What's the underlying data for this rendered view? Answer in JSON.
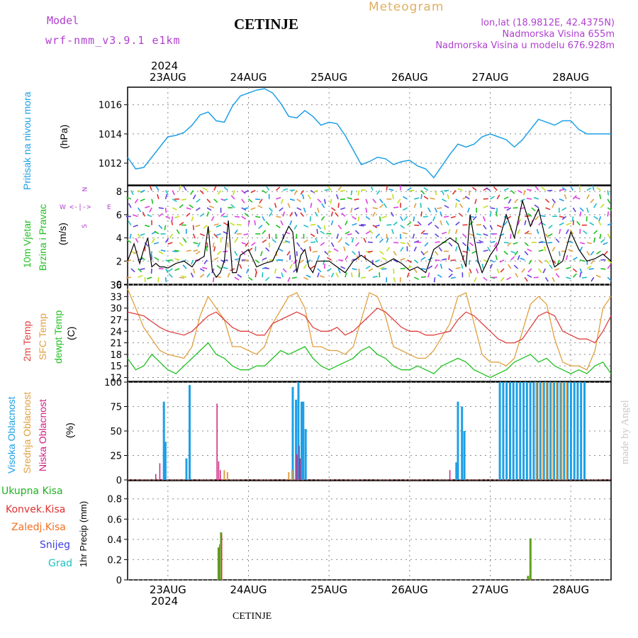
{
  "header": {
    "model_label": "Model",
    "model_name": "wrf-nmm_v3.9.1  e1km",
    "station": "CETINJE",
    "meteogram": "Meteogram",
    "lonlat": "lon,lat (18.9812E, 42.4375N)",
    "elev": "Nadmorska Visina 655m",
    "elev_model": "Nadmorska Visina u modelu 676.928m",
    "year_top": "2024",
    "year_bottom": "2024",
    "footer_station": "CETINJE",
    "watermark": "made by Angel"
  },
  "colors": {
    "pressure": "#1ea0e6",
    "temp": "#e04040",
    "sfc": "#e0a040",
    "dew": "#20c020",
    "high_cloud": "#1ea0e6",
    "mid_cloud": "#e0a040",
    "low_cloud": "#d02080",
    "total_precip": "#60a020",
    "convective": "#e03030",
    "frozen": "#f07020",
    "snow": "#4040e0",
    "graupel": "#20c0c0"
  },
  "chart_data": [
    {
      "type": "line",
      "panel": "pressure",
      "xlabel_days": [
        "23AUG",
        "24AUG",
        "25AUG",
        "26AUG",
        "27AUG",
        "28AUG"
      ],
      "ylabel_left": "Pritisak na nivou mora",
      "unit": "(hPa)",
      "yticks": [
        1012,
        1014,
        1016
      ],
      "ylim": [
        1010.5,
        1017.2
      ],
      "xlim": [
        -0.5,
        5.5
      ],
      "series": [
        {
          "x": [
            -0.5,
            -0.4,
            -0.3,
            -0.2,
            -0.1,
            0.0,
            0.1,
            0.2,
            0.3,
            0.4,
            0.5,
            0.6,
            0.7,
            0.8,
            0.9,
            1.0,
            1.1,
            1.2,
            1.3,
            1.4,
            1.5,
            1.6,
            1.7,
            1.8,
            1.9,
            2.0,
            2.1,
            2.2,
            2.3,
            2.4,
            2.5,
            2.6,
            2.7,
            2.8,
            2.9,
            3.0,
            3.1,
            3.2,
            3.3,
            3.4,
            3.5,
            3.6,
            3.7,
            3.8,
            3.9,
            4.0,
            4.1,
            4.2,
            4.3,
            4.4,
            4.5,
            4.6,
            4.7,
            4.8,
            4.9,
            5.0,
            5.1,
            5.2,
            5.3,
            5.4,
            5.5
          ],
          "y": [
            1012.4,
            1011.6,
            1011.7,
            1012.4,
            1013.1,
            1013.8,
            1013.9,
            1014.1,
            1014.6,
            1015.3,
            1015.5,
            1014.9,
            1014.8,
            1015.9,
            1016.6,
            1016.8,
            1017.0,
            1017.1,
            1016.8,
            1016.1,
            1015.2,
            1015.1,
            1015.6,
            1015.2,
            1014.6,
            1014.8,
            1014.7,
            1013.9,
            1012.9,
            1011.9,
            1012.1,
            1012.4,
            1012.3,
            1011.9,
            1012.1,
            1012.2,
            1011.8,
            1011.6,
            1011.0,
            1011.8,
            1012.6,
            1013.3,
            1013.1,
            1013.3,
            1013.8,
            1014.0,
            1013.8,
            1013.6,
            1013.1,
            1013.6,
            1014.3,
            1015.0,
            1014.8,
            1014.6,
            1014.9,
            1014.9,
            1014.3,
            1014.0,
            1014.0,
            1014.0,
            1014.0
          ]
        }
      ]
    },
    {
      "type": "line",
      "panel": "wind",
      "ylabel_left": "10m Vjetar",
      "ylabel_left2": "Brzina i Pravac",
      "unit": "(m/s)",
      "compass": [
        "N",
        "E",
        "S",
        "W"
      ],
      "yticks": [
        0,
        2,
        4,
        6,
        8
      ],
      "ylim": [
        0,
        8.5
      ],
      "series": [
        {
          "name": "speed",
          "x": [
            -0.5,
            -0.42,
            -0.35,
            -0.3,
            -0.25,
            -0.2,
            -0.15,
            -0.1,
            -0.05,
            0.0,
            0.05,
            0.1,
            0.2,
            0.3,
            0.35,
            0.4,
            0.45,
            0.5,
            0.55,
            0.6,
            0.65,
            0.7,
            0.75,
            0.8,
            0.85,
            0.9,
            1.0,
            1.1,
            1.2,
            1.3,
            1.4,
            1.5,
            1.55,
            1.6,
            1.65,
            1.7,
            1.75,
            1.8,
            1.85,
            1.9,
            2.0,
            2.1,
            2.2,
            2.3,
            2.4,
            2.5,
            2.6,
            2.7,
            2.8,
            2.9,
            3.0,
            3.1,
            3.2,
            3.3,
            3.4,
            3.5,
            3.6,
            3.65,
            3.7,
            3.75,
            3.8,
            3.85,
            3.9,
            4.0,
            4.1,
            4.2,
            4.3,
            4.4,
            4.5,
            4.6,
            4.7,
            4.8,
            4.9,
            5.0,
            5.1,
            5.2,
            5.3,
            5.4,
            5.5
          ],
          "y": [
            2.0,
            3.5,
            1.8,
            3.0,
            4.0,
            1.5,
            1.8,
            1.5,
            1.5,
            1.4,
            1.6,
            1.8,
            2.0,
            1.5,
            2.0,
            2.2,
            2.4,
            5.0,
            1.2,
            0.6,
            1.0,
            2.0,
            5.5,
            1.0,
            1.0,
            2.5,
            3.0,
            1.5,
            1.8,
            2.0,
            3.5,
            5.0,
            4.5,
            1.0,
            2.5,
            3.0,
            1.5,
            1.0,
            2.0,
            2.0,
            2.0,
            1.5,
            1.0,
            2.0,
            2.5,
            2.0,
            1.5,
            1.8,
            2.2,
            1.8,
            1.2,
            1.5,
            1.0,
            3.0,
            3.5,
            4.0,
            3.5,
            2.5,
            1.5,
            6.0,
            4.0,
            2.0,
            1.0,
            2.5,
            3.5,
            6.0,
            4.0,
            7.2,
            5.0,
            6.5,
            3.5,
            1.5,
            2.0,
            4.5,
            3.0,
            2.0,
            2.2,
            2.6,
            2.0
          ]
        }
      ]
    },
    {
      "type": "line",
      "panel": "temperature",
      "ylabel_a": "2m Temp",
      "ylabel_b": "SFC Temp",
      "ylabel_c": "dewpt Temp",
      "unit": "(C)",
      "yticks": [
        12,
        15,
        18,
        21,
        24,
        27,
        30,
        33,
        36
      ],
      "ylim": [
        11,
        36
      ],
      "series": [
        {
          "name": "2m",
          "x": [
            -0.5,
            -0.3,
            -0.1,
            0.0,
            0.2,
            0.3,
            0.4,
            0.5,
            0.6,
            0.7,
            0.8,
            0.9,
            1.0,
            1.1,
            1.2,
            1.3,
            1.5,
            1.6,
            1.7,
            1.8,
            1.9,
            2.0,
            2.1,
            2.2,
            2.3,
            2.4,
            2.5,
            2.6,
            2.7,
            2.8,
            2.9,
            3.0,
            3.1,
            3.2,
            3.3,
            3.5,
            3.6,
            3.7,
            3.8,
            3.9,
            4.0,
            4.1,
            4.2,
            4.3,
            4.4,
            4.5,
            4.6,
            4.7,
            4.8,
            4.9,
            5.0,
            5.1,
            5.2,
            5.3,
            5.4,
            5.5
          ],
          "y": [
            29,
            28,
            25,
            24,
            23,
            24,
            26,
            28,
            29,
            27,
            25,
            24,
            24,
            23,
            23,
            26,
            28,
            29,
            28,
            25,
            24,
            24,
            25,
            23,
            24,
            26,
            28,
            30,
            29,
            27,
            25,
            24,
            24,
            23,
            23,
            24,
            27,
            29,
            28,
            26,
            24,
            22,
            21,
            21,
            22,
            25,
            28,
            29,
            28,
            24,
            23,
            22,
            22,
            21,
            24,
            28
          ]
        },
        {
          "name": "sfc",
          "x": [
            -0.5,
            -0.4,
            -0.3,
            -0.1,
            0.0,
            0.2,
            0.3,
            0.4,
            0.5,
            0.6,
            0.7,
            0.8,
            0.9,
            1.0,
            1.1,
            1.2,
            1.3,
            1.5,
            1.6,
            1.7,
            1.8,
            1.9,
            2.0,
            2.1,
            2.2,
            2.3,
            2.4,
            2.5,
            2.6,
            2.7,
            2.8,
            2.9,
            3.0,
            3.1,
            3.2,
            3.3,
            3.5,
            3.6,
            3.7,
            3.8,
            3.9,
            4.0,
            4.1,
            4.2,
            4.3,
            4.4,
            4.5,
            4.6,
            4.7,
            4.8,
            4.9,
            5.0,
            5.1,
            5.2,
            5.3,
            5.4,
            5.5
          ],
          "y": [
            35,
            30,
            25,
            19,
            18,
            17,
            20,
            28,
            33,
            30,
            27,
            20,
            20,
            19,
            18,
            20,
            26,
            33,
            34,
            30,
            20,
            20,
            19,
            19,
            18,
            20,
            27,
            34,
            33,
            28,
            20,
            19,
            18,
            17,
            17,
            19,
            26,
            33,
            34,
            26,
            18,
            16,
            16,
            15,
            17,
            24,
            31,
            33,
            31,
            22,
            16,
            15,
            15,
            14,
            19,
            30,
            33
          ]
        },
        {
          "name": "dew",
          "x": [
            -0.5,
            -0.4,
            -0.3,
            -0.2,
            -0.1,
            0.0,
            0.1,
            0.2,
            0.3,
            0.4,
            0.5,
            0.6,
            0.7,
            0.8,
            0.9,
            1.0,
            1.1,
            1.2,
            1.3,
            1.4,
            1.5,
            1.6,
            1.7,
            1.8,
            1.9,
            2.0,
            2.1,
            2.2,
            2.3,
            2.4,
            2.5,
            2.6,
            2.7,
            2.8,
            2.9,
            3.0,
            3.1,
            3.2,
            3.3,
            3.4,
            3.5,
            3.6,
            3.7,
            3.8,
            3.9,
            4.0,
            4.1,
            4.2,
            4.3,
            4.4,
            4.5,
            4.6,
            4.7,
            4.8,
            4.9,
            5.0,
            5.1,
            5.2,
            5.3,
            5.4,
            5.5
          ],
          "y": [
            17,
            14,
            15,
            18,
            16,
            14,
            13,
            15,
            17,
            19,
            21,
            18,
            17,
            15,
            14,
            14,
            15,
            15,
            17,
            19,
            18,
            19,
            20,
            17,
            15,
            14,
            15,
            16,
            17,
            19,
            20,
            18,
            17,
            15,
            14,
            14,
            15,
            14,
            13,
            15,
            16,
            17,
            16,
            14,
            13,
            12,
            13,
            14,
            16,
            17,
            18,
            16,
            17,
            15,
            14,
            13,
            14,
            13,
            15,
            16,
            13
          ]
        }
      ]
    },
    {
      "type": "bar",
      "panel": "clouds",
      "ylabel_a": "Visoka Oblacnost",
      "ylabel_b": "Srednja Oblacnost",
      "ylabel_c": "Niska Oblacnost",
      "unit": "(%)",
      "yticks": [
        0,
        25,
        50,
        75,
        100
      ],
      "ylim": [
        0,
        100
      ],
      "series": [
        {
          "name": "high",
          "x": [
            -0.05,
            -0.03,
            0.23,
            0.27,
            3.58,
            3.6,
            3.65,
            3.68,
            1.55,
            1.59,
            1.62,
            1.66,
            1.68,
            1.71,
            1.75
          ],
          "values": [
            80,
            39,
            22,
            97,
            18,
            80,
            75,
            50,
            95,
            82,
            100,
            80,
            80,
            52,
            0
          ]
        },
        {
          "name": "mid",
          "x": [
            1.5,
            1.54,
            0.7,
            0.74
          ],
          "values": [
            8,
            10,
            10,
            8
          ]
        },
        {
          "name": "low",
          "x": [
            -0.15,
            -0.1,
            0.61,
            0.63,
            0.65,
            1.6,
            1.63,
            1.64,
            3.5
          ],
          "values": [
            6,
            17,
            78,
            19,
            10,
            26,
            35,
            22,
            10
          ]
        }
      ],
      "dense_high_range": [
        4.12,
        5.2
      ],
      "dense_mid_range": [
        4.55,
        4.95
      ]
    },
    {
      "type": "bar",
      "panel": "precip",
      "legend": [
        "Ukupna  Kisa",
        "Konvek.Kisa",
        "Zaledj.Kisa",
        "Snijeg",
        "Grad"
      ],
      "ylabel": "1hr  Precip  (mm)",
      "yticks": [
        0,
        0.2,
        0.4,
        0.6,
        0.8
      ],
      "ylim": [
        0,
        0.98
      ],
      "series": [
        {
          "name": "total",
          "x": [
            0.63,
            0.66,
            4.47,
            4.5
          ],
          "values": [
            0.32,
            0.47,
            0.04,
            0.41
          ]
        },
        {
          "name": "convective",
          "x": [
            0.64,
            0.67,
            4.52
          ],
          "values": [
            0.35,
            0.45,
            0.01
          ]
        }
      ]
    }
  ]
}
